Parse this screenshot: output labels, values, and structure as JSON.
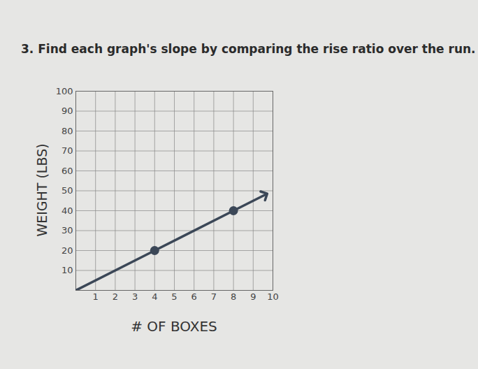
{
  "chart_data": {
    "type": "line",
    "title": "3. Find each graph's slope by comparing the rise ratio over the run.",
    "x_label": "# OF BOXES",
    "y_label": "WEIGHT (LBS)",
    "x": [
      0,
      4,
      8,
      9.6
    ],
    "values": [
      0,
      20,
      40,
      48
    ],
    "marked_points": {
      "x": [
        4,
        8
      ],
      "values": [
        20,
        40
      ]
    },
    "color": "#3b4757",
    "xlim": [
      0,
      10
    ],
    "xticks": [
      1,
      2,
      3,
      4,
      5,
      6,
      7,
      8,
      9,
      10
    ],
    "ylim": [
      0,
      100
    ],
    "yticks": [
      10,
      20,
      30,
      40,
      50,
      60,
      70,
      80,
      90,
      100
    ],
    "grid": true
  }
}
